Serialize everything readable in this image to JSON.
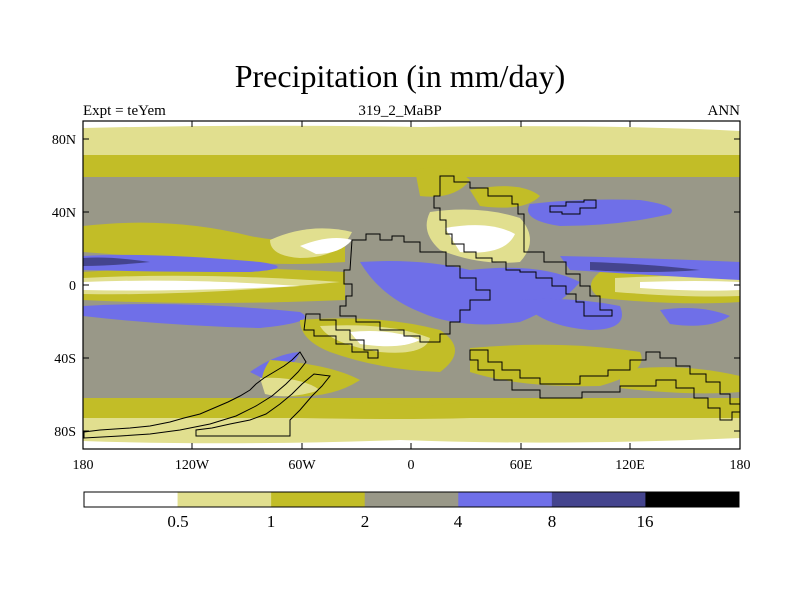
{
  "figure": {
    "title": "Precipitation (in mm/day)",
    "left_label": "Expt = teYem",
    "center_label": "319_2_MaBP",
    "right_label": "ANN"
  },
  "map": {
    "lat_ticks": [
      "80N",
      "40N",
      "0",
      "40S",
      "80S"
    ],
    "lon_ticks": [
      "180",
      "120W",
      "60W",
      "0",
      "60E",
      "120E",
      "180"
    ]
  },
  "colorbar": {
    "levels": [
      "0.5",
      "1",
      "2",
      "4",
      "8",
      "16"
    ],
    "colors": [
      "#ffffff",
      "#e1df8f",
      "#c2bd27",
      "#999888",
      "#6f6fe8",
      "#44448e",
      "#000000"
    ]
  }
}
